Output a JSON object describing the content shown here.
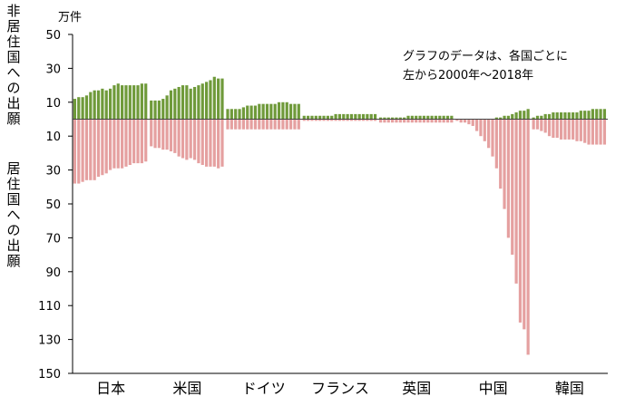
{
  "chart_data": {
    "type": "bar",
    "unit": "万件",
    "ylabel_positive": "非居住国への出願",
    "ylabel_negative": "居住国への出願",
    "annotation": [
      "グラフのデータは、各国ごとに",
      "左から2000年～2018年"
    ],
    "years": [
      2000,
      2001,
      2002,
      2003,
      2004,
      2005,
      2006,
      2007,
      2008,
      2009,
      2010,
      2011,
      2012,
      2013,
      2014,
      2015,
      2016,
      2017,
      2018
    ],
    "ylim": [
      -150,
      50
    ],
    "yticks": [
      50,
      30,
      10,
      -10,
      -30,
      -50,
      -70,
      -90,
      -110,
      -130,
      -150
    ],
    "ytick_labels": [
      "50",
      "30",
      "10",
      "10",
      "30",
      "50",
      "70",
      "90",
      "110",
      "130",
      "150"
    ],
    "colors": {
      "non_resident": "#6f9a3a",
      "resident": "#e5a0a0"
    },
    "countries": [
      {
        "name": "日本",
        "non_resident": [
          12,
          13,
          13,
          14,
          16,
          17,
          17,
          18,
          17,
          18,
          20,
          21,
          20,
          20,
          20,
          20,
          20,
          21,
          21
        ],
        "resident": [
          38,
          38,
          37,
          36,
          36,
          36,
          34,
          33,
          32,
          30,
          29,
          29,
          29,
          28,
          27,
          26,
          26,
          26,
          25
        ]
      },
      {
        "name": "米国",
        "non_resident": [
          11,
          11,
          11,
          12,
          14,
          17,
          18,
          19,
          20,
          20,
          18,
          19,
          20,
          21,
          22,
          23,
          25,
          24,
          24
        ],
        "resident": [
          16,
          17,
          17,
          18,
          18,
          19,
          20,
          22,
          23,
          24,
          23,
          24,
          26,
          27,
          28,
          28,
          28,
          29,
          28
        ]
      },
      {
        "name": "ドイツ",
        "non_resident": [
          6,
          6,
          6,
          6,
          7,
          8,
          8,
          8,
          9,
          9,
          9,
          9,
          9,
          10,
          10,
          10,
          9,
          9,
          9
        ],
        "resident": [
          6,
          6,
          6,
          6,
          6,
          6,
          6,
          6,
          6,
          6,
          6,
          6,
          6,
          6,
          6,
          6,
          6,
          6,
          6
        ]
      },
      {
        "name": "フランス",
        "non_resident": [
          2,
          2,
          2,
          2,
          2,
          2,
          2,
          2,
          3,
          3,
          3,
          3,
          3,
          3,
          3,
          3,
          3,
          3,
          3
        ],
        "resident": [
          1,
          1,
          1,
          1,
          1,
          1,
          1,
          1,
          1,
          1,
          1,
          1,
          1,
          1,
          1,
          1,
          1,
          1,
          1
        ]
      },
      {
        "name": "英国",
        "non_resident": [
          1,
          1,
          1,
          1,
          1,
          1,
          1,
          2,
          2,
          2,
          2,
          2,
          2,
          2,
          2,
          2,
          2,
          2,
          2
        ],
        "resident": [
          2,
          2,
          2,
          2,
          2,
          2,
          2,
          2,
          2,
          2,
          2,
          2,
          2,
          2,
          2,
          2,
          2,
          2,
          2
        ]
      },
      {
        "name": "中国",
        "non_resident": [
          0,
          0,
          0,
          0,
          0,
          0,
          0,
          0,
          0,
          0,
          1,
          1,
          2,
          2,
          3,
          4,
          5,
          5,
          6
        ],
        "resident": [
          1,
          2,
          2,
          3,
          4,
          7,
          10,
          13,
          17,
          22,
          29,
          41,
          53,
          70,
          80,
          97,
          120,
          124,
          139
        ]
      },
      {
        "name": "韓国",
        "non_resident": [
          1,
          2,
          2,
          3,
          3,
          4,
          4,
          4,
          4,
          4,
          4,
          4,
          5,
          5,
          5,
          6,
          6,
          6,
          6
        ],
        "resident": [
          6,
          6,
          7,
          8,
          10,
          11,
          11,
          12,
          12,
          12,
          12,
          13,
          13,
          14,
          15,
          15,
          15,
          15,
          15
        ]
      }
    ]
  }
}
